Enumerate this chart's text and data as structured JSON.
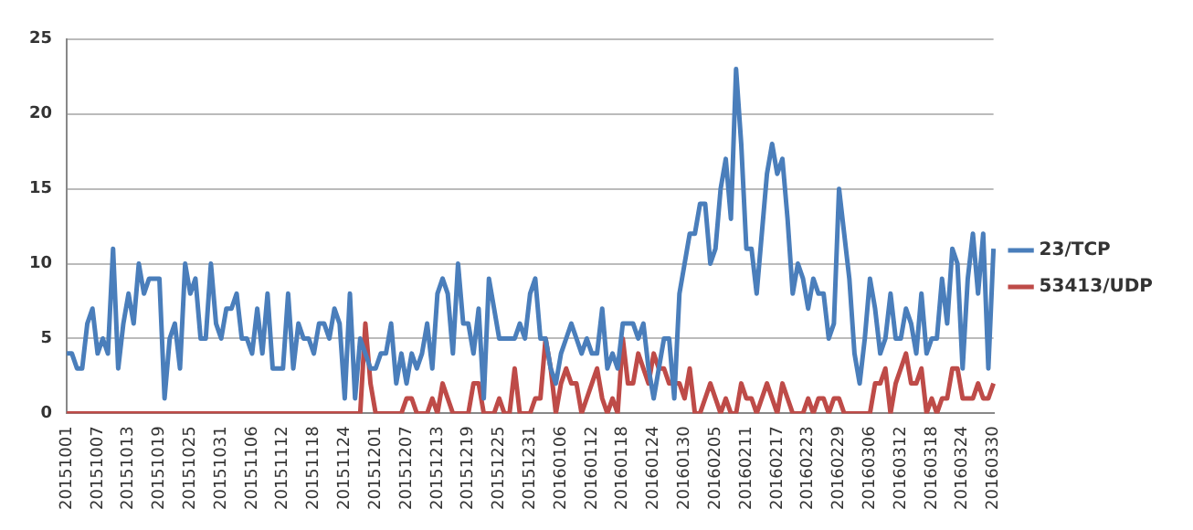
{
  "chart_data": {
    "type": "line",
    "categories": [
      "20151001",
      null,
      null,
      null,
      null,
      null,
      "20151007",
      null,
      null,
      null,
      null,
      null,
      "20151013",
      null,
      null,
      null,
      null,
      null,
      "20151019",
      null,
      null,
      null,
      null,
      null,
      "20151025",
      null,
      null,
      null,
      null,
      null,
      "20151031",
      null,
      null,
      null,
      null,
      null,
      "20151106",
      null,
      null,
      null,
      null,
      null,
      "20151112",
      null,
      null,
      null,
      null,
      null,
      "20151118",
      null,
      null,
      null,
      null,
      null,
      "20151124",
      null,
      null,
      null,
      null,
      null,
      "20151201",
      null,
      null,
      null,
      null,
      null,
      "20151207",
      null,
      null,
      null,
      null,
      null,
      "20151213",
      null,
      null,
      null,
      null,
      null,
      "20151219",
      null,
      null,
      null,
      null,
      null,
      "20151225",
      null,
      null,
      null,
      null,
      null,
      "20151231",
      null,
      null,
      null,
      null,
      null,
      "20160106",
      null,
      null,
      null,
      null,
      null,
      "20160112",
      null,
      null,
      null,
      null,
      null,
      "20160118",
      null,
      null,
      null,
      null,
      null,
      "20160124",
      null,
      null,
      null,
      null,
      null,
      "20160130",
      null,
      null,
      null,
      null,
      null,
      "20160205",
      null,
      null,
      null,
      null,
      null,
      "20160211",
      null,
      null,
      null,
      null,
      null,
      "20160217",
      null,
      null,
      null,
      null,
      null,
      "20160223",
      null,
      null,
      null,
      null,
      null,
      "20160229",
      null,
      null,
      null,
      null,
      null,
      "20160306",
      null,
      null,
      null,
      null,
      null,
      "20160312",
      null,
      null,
      null,
      null,
      null,
      "20160318",
      null,
      null,
      null,
      null,
      null,
      "20160324",
      null,
      null,
      null,
      null,
      null,
      "20160330"
    ],
    "series": [
      {
        "name": "23/TCP",
        "color": "#4a7ebb",
        "values": [
          4,
          4,
          3,
          3,
          6,
          7,
          4,
          5,
          4,
          11,
          3,
          6,
          8,
          6,
          10,
          8,
          9,
          9,
          9,
          1,
          5,
          6,
          3,
          10,
          8,
          9,
          5,
          5,
          10,
          6,
          5,
          7,
          7,
          8,
          5,
          5,
          4,
          7,
          4,
          8,
          3,
          3,
          3,
          8,
          3,
          6,
          5,
          5,
          4,
          6,
          6,
          5,
          7,
          6,
          1,
          8,
          1,
          5,
          4,
          3,
          3,
          4,
          4,
          6,
          2,
          4,
          2,
          4,
          3,
          4,
          6,
          3,
          8,
          9,
          8,
          4,
          10,
          6,
          6,
          4,
          7,
          1,
          9,
          7,
          5,
          5,
          5,
          5,
          6,
          5,
          8,
          9,
          5,
          5,
          3,
          2,
          4,
          5,
          6,
          5,
          4,
          5,
          4,
          4,
          7,
          3,
          4,
          3,
          6,
          6,
          6,
          5,
          6,
          3,
          1,
          3,
          5,
          5,
          1,
          8,
          10,
          12,
          12,
          14,
          14,
          10,
          11,
          15,
          17,
          13,
          23,
          18,
          11,
          11,
          8,
          12,
          16,
          18,
          16,
          17,
          13,
          8,
          10,
          9,
          7,
          9,
          8,
          8,
          5,
          6,
          15,
          12,
          9,
          4,
          2,
          5,
          9,
          7,
          4,
          5,
          8,
          5,
          5,
          7,
          6,
          4,
          8,
          4,
          5,
          5,
          9,
          6,
          11,
          10,
          3,
          9,
          12,
          8,
          12,
          3,
          11
        ]
      },
      {
        "name": "53413/UDP",
        "color": "#be4b48",
        "values": [
          0,
          0,
          0,
          0,
          0,
          0,
          0,
          0,
          0,
          0,
          0,
          0,
          0,
          0,
          0,
          0,
          0,
          0,
          0,
          0,
          0,
          0,
          0,
          0,
          0,
          0,
          0,
          0,
          0,
          0,
          0,
          0,
          0,
          0,
          0,
          0,
          0,
          0,
          0,
          0,
          0,
          0,
          0,
          0,
          0,
          0,
          0,
          0,
          0,
          0,
          0,
          0,
          0,
          0,
          0,
          0,
          0,
          0,
          6,
          2,
          0,
          0,
          0,
          0,
          0,
          0,
          1,
          1,
          0,
          0,
          0,
          1,
          0,
          2,
          1,
          0,
          0,
          0,
          0,
          2,
          2,
          0,
          0,
          0,
          1,
          0,
          0,
          3,
          0,
          0,
          0,
          1,
          1,
          5,
          3,
          0,
          2,
          3,
          2,
          2,
          0,
          1,
          2,
          3,
          1,
          0,
          1,
          0,
          5,
          2,
          2,
          4,
          3,
          2,
          4,
          3,
          3,
          2,
          2,
          2,
          1,
          3,
          0,
          0,
          1,
          2,
          1,
          0,
          1,
          0,
          0,
          2,
          1,
          1,
          0,
          1,
          2,
          1,
          0,
          2,
          1,
          0,
          0,
          0,
          1,
          0,
          1,
          1,
          0,
          1,
          1,
          0,
          0,
          0,
          0,
          0,
          0,
          2,
          2,
          3,
          0,
          2,
          3,
          4,
          2,
          2,
          3,
          0,
          1,
          0,
          1,
          1,
          3,
          3,
          1,
          1,
          1,
          2,
          1,
          1,
          2
        ]
      }
    ],
    "ylim": [
      0,
      25
    ],
    "yticks": [
      0,
      5,
      10,
      15,
      20,
      25
    ],
    "grid": "y",
    "legend": "right",
    "marker": "none",
    "line_style": "solid"
  }
}
